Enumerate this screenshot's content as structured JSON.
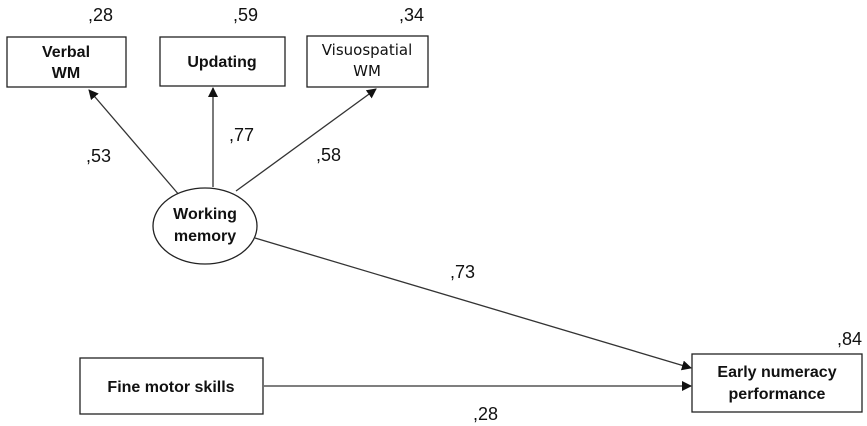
{
  "nodes": {
    "verbal_wm": {
      "line1": "Verbal",
      "line2": "WM",
      "r2": ",28"
    },
    "updating": {
      "label": "Updating",
      "r2": ",59"
    },
    "visuospatial_wm": {
      "line1": "Visuospatial",
      "line2": "WM",
      "r2": ",34"
    },
    "working_memory": {
      "line1": "Working",
      "line2": "memory"
    },
    "fine_motor": {
      "label": "Fine motor skills"
    },
    "early_numeracy": {
      "line1": "Early numeracy",
      "line2": "performance",
      "r2": ",84"
    }
  },
  "paths": {
    "wm_to_verbal": ",53",
    "wm_to_updating": ",77",
    "wm_to_visuospatial": ",58",
    "wm_to_numeracy": ",73",
    "fine_motor_to_numeracy": ",28"
  }
}
